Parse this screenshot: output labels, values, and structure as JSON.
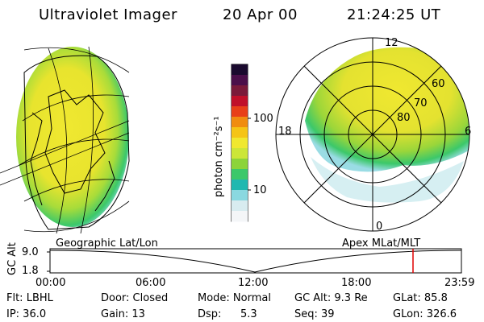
{
  "header": {
    "title": "Ultraviolet Imager",
    "date": "20 Apr 00",
    "time": "21:24:25 UT"
  },
  "colorbar": {
    "unit_label": "photon cm⁻²s⁻¹",
    "ticks": [
      "100",
      "10"
    ],
    "scale": "log",
    "colors": [
      "#1a0a2e",
      "#4b0f4a",
      "#7a1a3a",
      "#c0102a",
      "#e84018",
      "#f08c10",
      "#f5c416",
      "#f0e830",
      "#cce638",
      "#8cd43a",
      "#3cc86a",
      "#20b8b0",
      "#8ad8e0",
      "#d8ecf0",
      "#f4f6f8"
    ]
  },
  "polar_plot": {
    "mlt_labels": {
      "top": "12",
      "left": "18",
      "right": "6",
      "bottom": "0"
    },
    "lat_labels": [
      "60",
      "70",
      "80"
    ]
  },
  "timeline": {
    "left_label": "Geographic Lat/Lon",
    "right_label": "Apex MLat/MLT",
    "axis_title": "GC Alt",
    "y_ticks": [
      "9.0",
      "1.8"
    ],
    "x_ticks": [
      "00:00",
      "06:00",
      "12:00",
      "18:00",
      "23:59"
    ],
    "marker_color": "#e00000"
  },
  "info": {
    "flt": "Flt: LBHL",
    "ip": "IP: 36.0",
    "door": "Door: Closed",
    "gain": "Gain: 13",
    "mode": "Mode: Normal",
    "dsp_label": "Dsp:",
    "dsp_value": "5.3",
    "gcalt": "GC Alt: 9.3 Re",
    "seq": "Seq: 39",
    "glat": "GLat: 85.8",
    "glon": "GLon: 326.6"
  }
}
